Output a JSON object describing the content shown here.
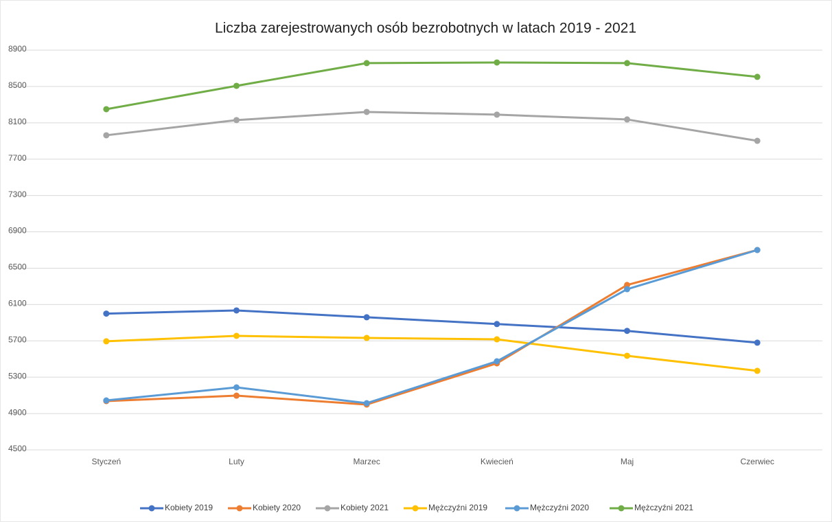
{
  "chart_data": {
    "type": "line",
    "title": "Liczba zarejestrowanych osób bezrobotnych w latach 2019 - 2021",
    "categories": [
      "Styczeń",
      "Luty",
      "Marzec",
      "Kwiecień",
      "Maj",
      "Czerwiec"
    ],
    "series": [
      {
        "name": "Kobiety 2019",
        "color": "#4472c4",
        "values": [
          6000,
          6035,
          5960,
          5885,
          5810,
          5680
        ]
      },
      {
        "name": "Kobiety 2020",
        "color": "#ed7d31",
        "values": [
          5037,
          5097,
          4999,
          5453,
          6315,
          6700
        ]
      },
      {
        "name": "Kobiety 2021",
        "color": "#a5a5a5",
        "values": [
          7963,
          8130,
          8220,
          8190,
          8137,
          7902
        ]
      },
      {
        "name": "Mężczyźni 2019",
        "color": "#ffc000",
        "values": [
          5695,
          5755,
          5732,
          5717,
          5536,
          5370
        ]
      },
      {
        "name": "Mężczyźni 2020",
        "color": "#5b9bd5",
        "values": [
          5044,
          5188,
          5014,
          5475,
          6269,
          6700
        ]
      },
      {
        "name": "Mężczyźni 2021",
        "color": "#70ad47",
        "values": [
          8250,
          8507,
          8757,
          8764,
          8757,
          8606
        ]
      }
    ],
    "ylim": [
      4500,
      8900
    ],
    "yticks": [
      4500,
      4900,
      5300,
      5700,
      6100,
      6500,
      6900,
      7300,
      7700,
      8100,
      8500,
      8900
    ],
    "grid": true,
    "legend": "bottom"
  }
}
